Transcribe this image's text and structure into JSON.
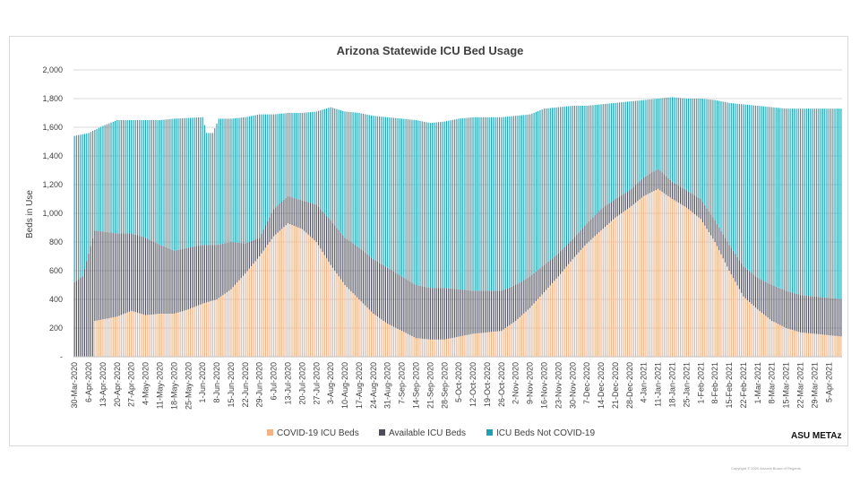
{
  "chart_data": {
    "type": "bar",
    "stacked": true,
    "title": "Arizona Statewide ICU Bed Usage",
    "xlabel": "",
    "ylabel": "Beds in Use",
    "ylim": [
      0,
      2000
    ],
    "y_ticks": [
      "-",
      "200",
      "400",
      "600",
      "800",
      "1,000",
      "1,200",
      "1,400",
      "1,600",
      "1,800",
      "2,000"
    ],
    "x_tick_labels": [
      "30-Mar-2020",
      "6-Apr-2020",
      "13-Apr-2020",
      "20-Apr-2020",
      "27-Apr-2020",
      "4-May-2020",
      "11-May-2020",
      "18-May-2020",
      "25-May-2020",
      "1-Jun-2020",
      "8-Jun-2020",
      "15-Jun-2020",
      "22-Jun-2020",
      "29-Jun-2020",
      "6-Jul-2020",
      "13-Jul-2020",
      "20-Jul-2020",
      "27-Jul-2020",
      "3-Aug-2020",
      "10-Aug-2020",
      "17-Aug-2020",
      "24-Aug-2020",
      "31-Aug-2020",
      "7-Sep-2020",
      "14-Sep-2020",
      "21-Sep-2020",
      "28-Sep-2020",
      "5-Oct-2020",
      "12-Oct-2020",
      "19-Oct-2020",
      "26-Oct-2020",
      "2-Nov-2020",
      "9-Nov-2020",
      "16-Nov-2020",
      "23-Nov-2020",
      "30-Nov-2020",
      "7-Dec-2020",
      "14-Dec-2020",
      "21-Dec-2020",
      "28-Dec-2020",
      "4-Jan-2021",
      "11-Jan-2021",
      "18-Jan-2021",
      "25-Jan-2021",
      "1-Feb-2021",
      "8-Feb-2021",
      "15-Feb-2021",
      "22-Feb-2021",
      "1-Mar-2021",
      "8-Mar-2021",
      "15-Mar-2021",
      "22-Mar-2021",
      "29-Mar-2021",
      "5-Apr-2021"
    ],
    "x_tick_values": [
      "2020-03-30",
      "2020-04-06",
      "2020-04-13",
      "2020-04-20",
      "2020-04-27",
      "2020-05-04",
      "2020-05-11",
      "2020-05-18",
      "2020-05-25",
      "2020-06-01",
      "2020-06-08",
      "2020-06-15",
      "2020-06-22",
      "2020-06-29",
      "2020-07-06",
      "2020-07-13",
      "2020-07-20",
      "2020-07-27",
      "2020-08-03",
      "2020-08-10",
      "2020-08-17",
      "2020-08-24",
      "2020-08-31",
      "2020-09-07",
      "2020-09-14",
      "2020-09-21",
      "2020-09-28",
      "2020-10-05",
      "2020-10-12",
      "2020-10-19",
      "2020-10-26",
      "2020-11-02",
      "2020-11-09",
      "2020-11-16",
      "2020-11-23",
      "2020-11-30",
      "2020-12-07",
      "2020-12-14",
      "2020-12-21",
      "2020-12-28",
      "2021-01-04",
      "2021-01-11",
      "2021-01-18",
      "2021-01-25",
      "2021-02-01",
      "2021-02-08",
      "2021-02-15",
      "2021-02-22",
      "2021-03-01",
      "2021-03-08",
      "2021-03-15",
      "2021-03-22",
      "2021-03-29",
      "2021-04-05"
    ],
    "x_range": [
      "2020-03-30",
      "2021-04-12"
    ],
    "bar_interval_days": 1,
    "series": [
      {
        "name": "COVID-19 ICU Beds",
        "color": "#f4b183",
        "points": [
          [
            "2020-03-30",
            0
          ],
          [
            "2020-04-08",
            0
          ],
          [
            "2020-04-09",
            250
          ],
          [
            "2020-04-20",
            280
          ],
          [
            "2020-04-27",
            320
          ],
          [
            "2020-05-04",
            290
          ],
          [
            "2020-05-11",
            300
          ],
          [
            "2020-05-18",
            300
          ],
          [
            "2020-05-25",
            330
          ],
          [
            "2020-06-01",
            370
          ],
          [
            "2020-06-08",
            400
          ],
          [
            "2020-06-15",
            470
          ],
          [
            "2020-06-22",
            580
          ],
          [
            "2020-06-29",
            700
          ],
          [
            "2020-07-06",
            840
          ],
          [
            "2020-07-13",
            930
          ],
          [
            "2020-07-20",
            890
          ],
          [
            "2020-07-27",
            800
          ],
          [
            "2020-08-03",
            640
          ],
          [
            "2020-08-10",
            500
          ],
          [
            "2020-08-17",
            400
          ],
          [
            "2020-08-24",
            300
          ],
          [
            "2020-08-31",
            230
          ],
          [
            "2020-09-07",
            180
          ],
          [
            "2020-09-14",
            130
          ],
          [
            "2020-09-21",
            120
          ],
          [
            "2020-09-28",
            120
          ],
          [
            "2020-10-05",
            140
          ],
          [
            "2020-10-12",
            160
          ],
          [
            "2020-10-19",
            170
          ],
          [
            "2020-10-26",
            180
          ],
          [
            "2020-11-02",
            250
          ],
          [
            "2020-11-09",
            340
          ],
          [
            "2020-11-16",
            450
          ],
          [
            "2020-11-23",
            560
          ],
          [
            "2020-11-30",
            680
          ],
          [
            "2020-12-07",
            790
          ],
          [
            "2020-12-14",
            880
          ],
          [
            "2020-12-21",
            970
          ],
          [
            "2020-12-28",
            1040
          ],
          [
            "2021-01-04",
            1120
          ],
          [
            "2021-01-11",
            1170
          ],
          [
            "2021-01-18",
            1100
          ],
          [
            "2021-01-25",
            1040
          ],
          [
            "2021-02-01",
            960
          ],
          [
            "2021-02-08",
            800
          ],
          [
            "2021-02-15",
            600
          ],
          [
            "2021-02-22",
            420
          ],
          [
            "2021-03-01",
            330
          ],
          [
            "2021-03-08",
            250
          ],
          [
            "2021-03-15",
            200
          ],
          [
            "2021-03-22",
            170
          ],
          [
            "2021-03-29",
            160
          ],
          [
            "2021-04-05",
            150
          ],
          [
            "2021-04-12",
            140
          ]
        ]
      },
      {
        "name": "Available ICU Beds",
        "color": "#4d4d5c",
        "points": [
          [
            "2020-03-30",
            520
          ],
          [
            "2020-04-03",
            560
          ],
          [
            "2020-04-09",
            880
          ],
          [
            "2020-04-20",
            860
          ],
          [
            "2020-04-27",
            860
          ],
          [
            "2020-05-04",
            830
          ],
          [
            "2020-05-11",
            780
          ],
          [
            "2020-05-18",
            740
          ],
          [
            "2020-05-25",
            760
          ],
          [
            "2020-06-01",
            780
          ],
          [
            "2020-06-08",
            780
          ],
          [
            "2020-06-15",
            800
          ],
          [
            "2020-06-22",
            790
          ],
          [
            "2020-06-29",
            830
          ],
          [
            "2020-07-06",
            1030
          ],
          [
            "2020-07-13",
            1120
          ],
          [
            "2020-07-20",
            1090
          ],
          [
            "2020-07-27",
            1060
          ],
          [
            "2020-08-03",
            950
          ],
          [
            "2020-08-10",
            830
          ],
          [
            "2020-08-17",
            760
          ],
          [
            "2020-08-24",
            680
          ],
          [
            "2020-08-31",
            620
          ],
          [
            "2020-09-07",
            560
          ],
          [
            "2020-09-14",
            500
          ],
          [
            "2020-09-21",
            480
          ],
          [
            "2020-09-28",
            480
          ],
          [
            "2020-10-05",
            470
          ],
          [
            "2020-10-12",
            460
          ],
          [
            "2020-10-19",
            460
          ],
          [
            "2020-10-26",
            460
          ],
          [
            "2020-11-02",
            500
          ],
          [
            "2020-11-09",
            560
          ],
          [
            "2020-11-16",
            640
          ],
          [
            "2020-11-23",
            720
          ],
          [
            "2020-11-30",
            820
          ],
          [
            "2020-12-07",
            930
          ],
          [
            "2020-12-14",
            1030
          ],
          [
            "2020-12-21",
            1100
          ],
          [
            "2020-12-28",
            1160
          ],
          [
            "2021-01-04",
            1250
          ],
          [
            "2021-01-11",
            1310
          ],
          [
            "2021-01-18",
            1220
          ],
          [
            "2021-01-25",
            1160
          ],
          [
            "2021-02-01",
            1100
          ],
          [
            "2021-02-08",
            950
          ],
          [
            "2021-02-15",
            780
          ],
          [
            "2021-02-22",
            630
          ],
          [
            "2021-03-01",
            550
          ],
          [
            "2021-03-08",
            500
          ],
          [
            "2021-03-15",
            460
          ],
          [
            "2021-03-22",
            430
          ],
          [
            "2021-03-29",
            420
          ],
          [
            "2021-04-05",
            410
          ],
          [
            "2021-04-12",
            400
          ]
        ]
      },
      {
        "name": "ICU Beds Not COVID-19",
        "color": "#1fa0b4",
        "points": [
          [
            "2020-03-30",
            1540
          ],
          [
            "2020-04-06",
            1560
          ],
          [
            "2020-04-13",
            1610
          ],
          [
            "2020-04-20",
            1650
          ],
          [
            "2020-04-27",
            1650
          ],
          [
            "2020-05-04",
            1650
          ],
          [
            "2020-05-11",
            1650
          ],
          [
            "2020-05-18",
            1660
          ],
          [
            "2020-05-25",
            1665
          ],
          [
            "2020-06-01",
            1670
          ],
          [
            "2020-06-03",
            1560
          ],
          [
            "2020-06-06",
            1560
          ],
          [
            "2020-06-09",
            1660
          ],
          [
            "2020-06-15",
            1660
          ],
          [
            "2020-06-22",
            1670
          ],
          [
            "2020-06-29",
            1690
          ],
          [
            "2020-07-06",
            1690
          ],
          [
            "2020-07-13",
            1700
          ],
          [
            "2020-07-20",
            1700
          ],
          [
            "2020-07-27",
            1710
          ],
          [
            "2020-08-03",
            1740
          ],
          [
            "2020-08-10",
            1710
          ],
          [
            "2020-08-17",
            1700
          ],
          [
            "2020-08-24",
            1680
          ],
          [
            "2020-08-31",
            1670
          ],
          [
            "2020-09-07",
            1660
          ],
          [
            "2020-09-14",
            1650
          ],
          [
            "2020-09-21",
            1630
          ],
          [
            "2020-09-28",
            1640
          ],
          [
            "2020-10-05",
            1660
          ],
          [
            "2020-10-12",
            1670
          ],
          [
            "2020-10-19",
            1670
          ],
          [
            "2020-10-26",
            1670
          ],
          [
            "2020-11-02",
            1680
          ],
          [
            "2020-11-09",
            1690
          ],
          [
            "2020-11-16",
            1730
          ],
          [
            "2020-11-23",
            1740
          ],
          [
            "2020-11-30",
            1750
          ],
          [
            "2020-12-07",
            1750
          ],
          [
            "2020-12-14",
            1760
          ],
          [
            "2020-12-21",
            1770
          ],
          [
            "2020-12-28",
            1780
          ],
          [
            "2021-01-04",
            1790
          ],
          [
            "2021-01-11",
            1800
          ],
          [
            "2021-01-18",
            1810
          ],
          [
            "2021-01-25",
            1800
          ],
          [
            "2021-02-01",
            1800
          ],
          [
            "2021-02-08",
            1790
          ],
          [
            "2021-02-15",
            1770
          ],
          [
            "2021-02-22",
            1760
          ],
          [
            "2021-03-01",
            1750
          ],
          [
            "2021-03-08",
            1740
          ],
          [
            "2021-03-15",
            1730
          ],
          [
            "2021-03-22",
            1730
          ],
          [
            "2021-03-29",
            1730
          ],
          [
            "2021-04-05",
            1730
          ],
          [
            "2021-04-12",
            1730
          ]
        ]
      }
    ],
    "legend": {
      "position": "bottom-center"
    },
    "grid": {
      "y_major": true
    },
    "colors": {
      "gridline": "#d9d9d9",
      "axis": "#bfbfbf",
      "text": "#404040"
    }
  },
  "branding": {
    "logo_text": "ASU METAz"
  },
  "footer": {
    "copyright": "Copyright © 2020 Arizona Board of Regents"
  }
}
